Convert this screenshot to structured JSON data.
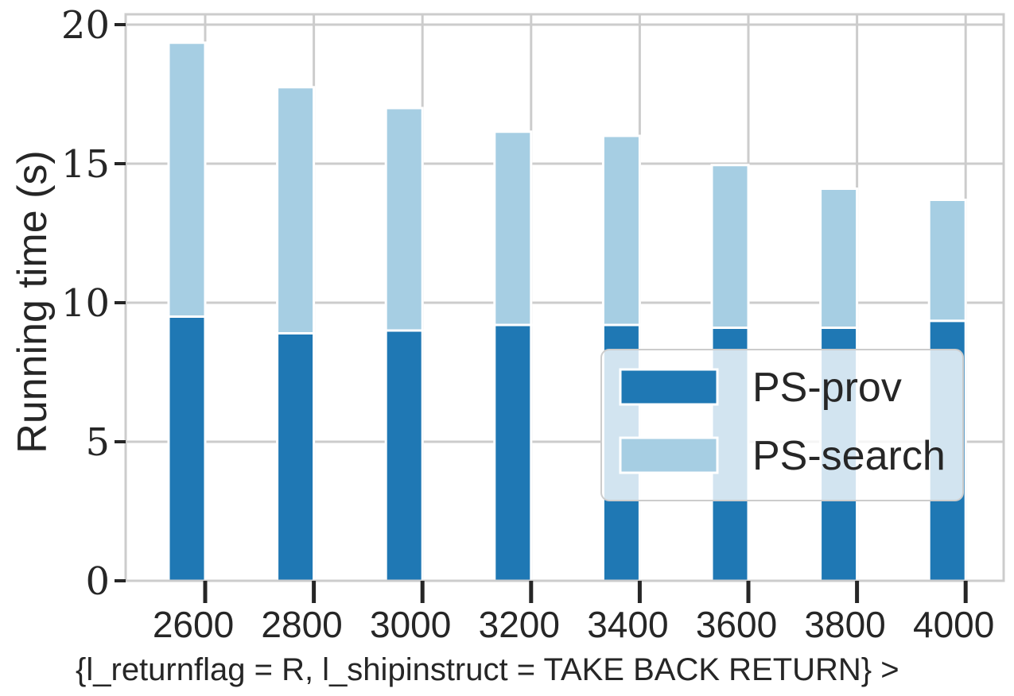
{
  "chart_data": {
    "type": "bar",
    "stacked": true,
    "categories": [
      "2600",
      "2800",
      "3000",
      "3200",
      "3400",
      "3600",
      "3800",
      "4000"
    ],
    "series": [
      {
        "name": "PS-prov",
        "values": [
          9.5,
          8.9,
          9.0,
          9.2,
          9.2,
          9.1,
          9.1,
          9.35
        ],
        "color": "#1f78b4"
      },
      {
        "name": "PS-search",
        "values": [
          9.85,
          8.85,
          8.0,
          6.95,
          6.8,
          5.85,
          5.0,
          4.35
        ],
        "color": "#a6cee3"
      }
    ],
    "xlabel": "{l_returnflag = R, l_shipinstruct = TAKE BACK RETURN} >",
    "ylabel": "Running time (s)",
    "ylim": [
      0,
      20
    ],
    "yticks": [
      "0",
      "5",
      "10",
      "15",
      "20"
    ],
    "grid": true,
    "legend_position": "center-right"
  }
}
